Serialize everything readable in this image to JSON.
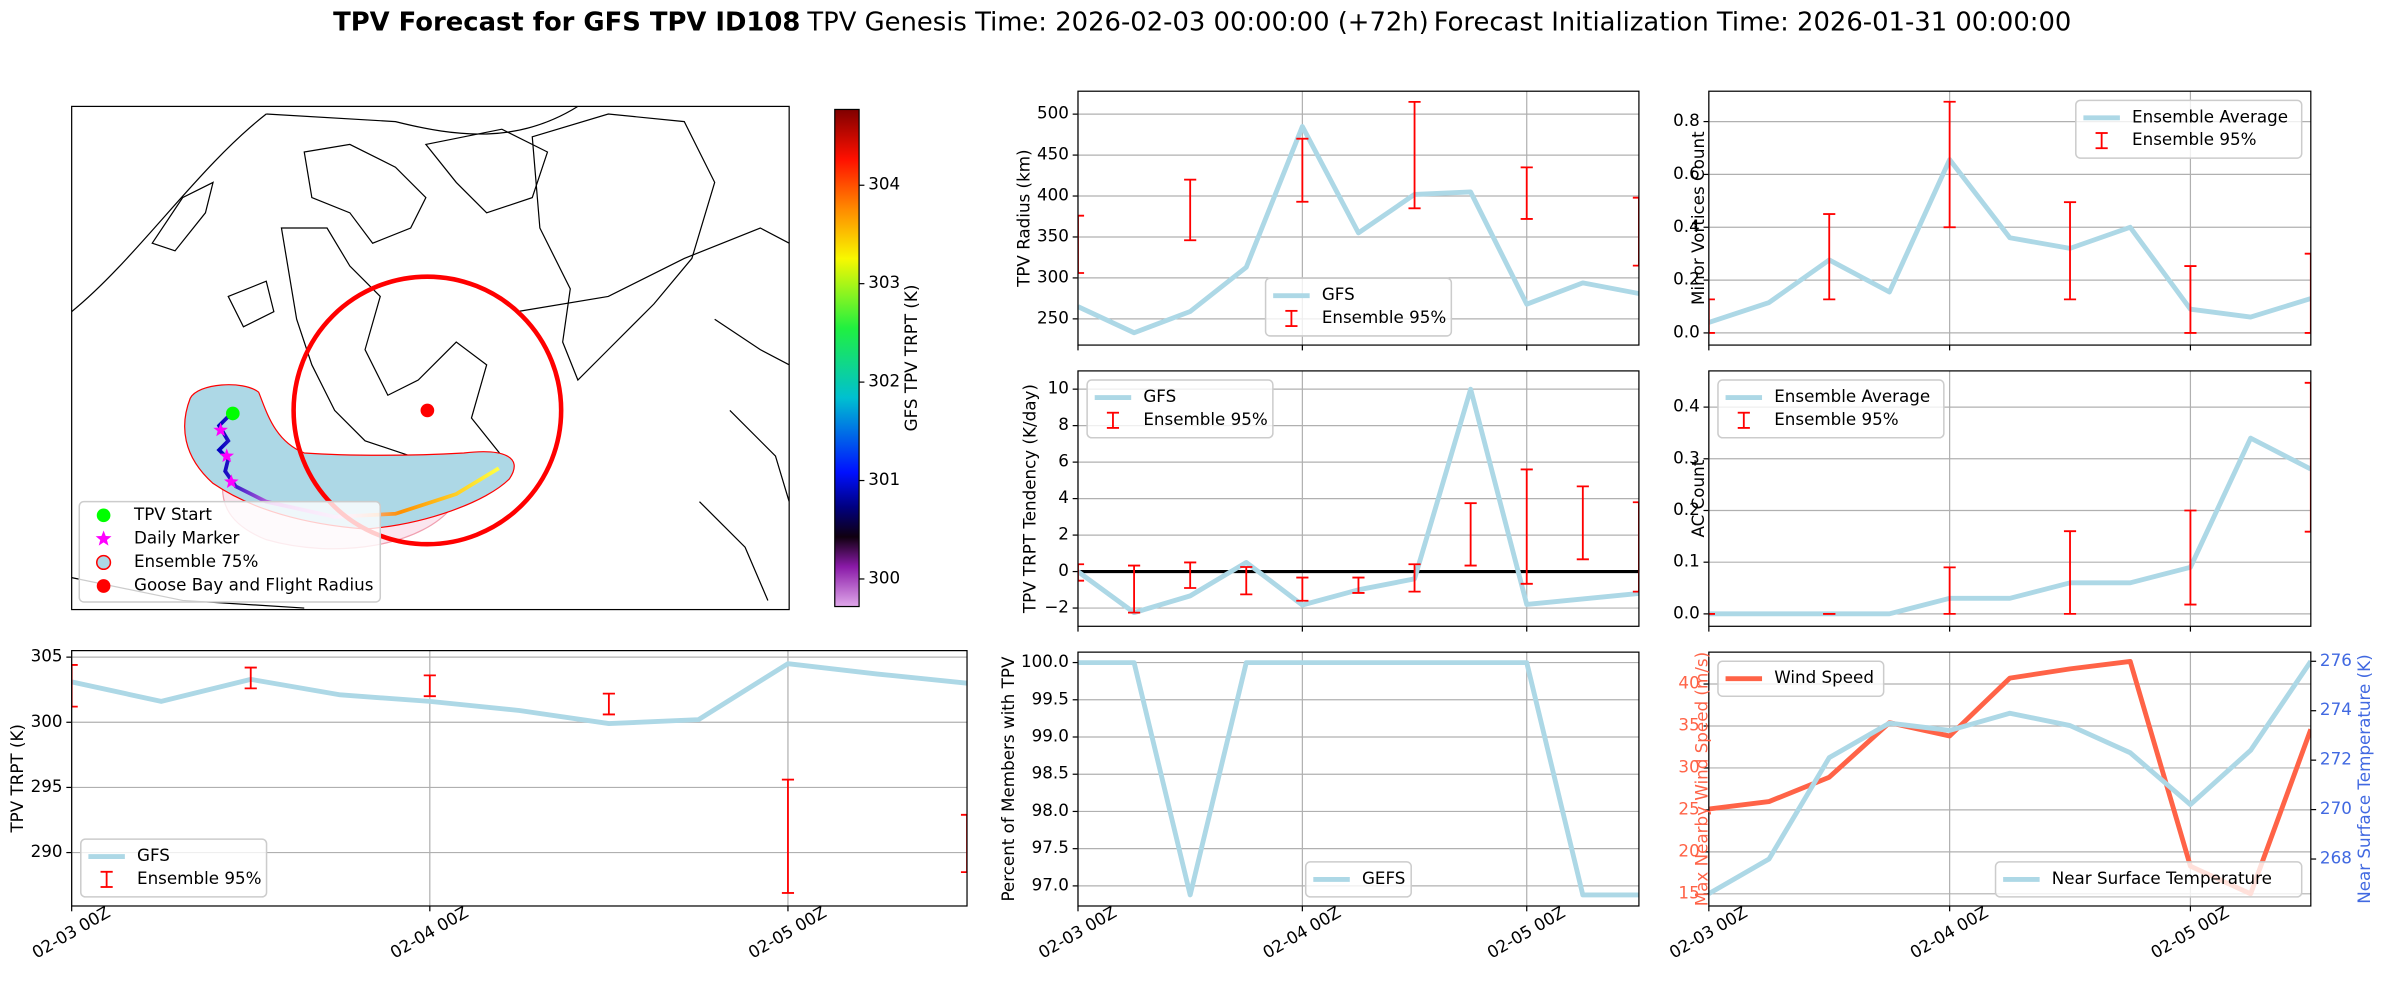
{
  "suptitle": [
    "TPV Forecast for GFS TPV ID108",
    "TPV Genesis Time: 2026-02-03 00:00:00 (+72h)",
    "Forecast Initialization Time: 2026-01-31 00:00:00"
  ],
  "chart_data": [
    {
      "type": "map",
      "legend_loc": "lower left",
      "legend": [
        {
          "label": "TPV Start",
          "color": "#00ff00",
          "marker": "circle"
        },
        {
          "label": "Daily Marker",
          "color": "#ff00ff",
          "marker": "star"
        },
        {
          "label": "Ensemble 75%",
          "color": "#add8e6",
          "edgecolor": "#ff0000",
          "marker": "circle"
        },
        {
          "label": "Goose Bay and Flight Radius",
          "color": "#ff0000",
          "marker": "circle"
        }
      ],
      "colorbar": {
        "label": "GFS TPV TRPT (K)",
        "lim": [
          299.72,
          304.77
        ],
        "ticks": [
          300,
          301,
          302,
          303,
          304
        ]
      }
    },
    {
      "type": "line",
      "ylabel": "TPV TRPT (K)",
      "x": [
        "02-03 00Z",
        "02-03 06Z",
        "02-03 12Z",
        "02-03 18Z",
        "02-04 00Z",
        "02-04 06Z",
        "02-04 12Z",
        "02-04 18Z",
        "02-05 00Z",
        "02-05 06Z",
        "02-05 12Z"
      ],
      "xlim": [
        "02-03 00Z",
        "02-05 12Z"
      ],
      "xticks": [
        "02-03 00Z",
        "02-04 00Z",
        "02-05 00Z"
      ],
      "xtick_labels": true,
      "ylim": [
        285.9,
        305.5
      ],
      "yticks": [
        290,
        295,
        300,
        305
      ],
      "grid": true,
      "legend": "lower left",
      "series": [
        {
          "name": "GFS",
          "color": "#add8e6",
          "values": [
            303.1,
            301.6,
            303.3,
            302.1,
            301.6,
            300.9,
            299.9,
            300.2,
            304.5,
            303.7,
            303.0
          ]
        },
        {
          "name": "Ensemble 95%",
          "type": "errorbar",
          "color": "#ff0000",
          "x": [
            "02-03 00Z",
            "02-03 12Z",
            "02-04 00Z",
            "02-04 12Z",
            "02-05 00Z",
            "02-05 12Z"
          ],
          "low": [
            301.2,
            302.6,
            302.0,
            300.6,
            286.9,
            288.5
          ],
          "high": [
            304.4,
            304.2,
            303.6,
            302.2,
            295.6,
            292.9
          ]
        }
      ]
    },
    {
      "type": "line",
      "ylabel": "TPV Radius (km)",
      "x": [
        "02-03 00Z",
        "02-03 06Z",
        "02-03 12Z",
        "02-03 18Z",
        "02-04 00Z",
        "02-04 06Z",
        "02-04 12Z",
        "02-04 18Z",
        "02-05 00Z",
        "02-05 06Z",
        "02-05 12Z"
      ],
      "xlim": [
        "02-03 00Z",
        "02-05 12Z"
      ],
      "xticks": [
        "02-03 00Z",
        "02-04 00Z",
        "02-05 00Z"
      ],
      "xtick_labels": false,
      "ylim": [
        218,
        528
      ],
      "yticks": [
        250,
        300,
        350,
        400,
        450,
        500
      ],
      "grid": true,
      "legend": "lower center",
      "series": [
        {
          "name": "GFS",
          "color": "#add8e6",
          "values": [
            265,
            233,
            259,
            313,
            485,
            355,
            402,
            405,
            268,
            294,
            281
          ]
        },
        {
          "name": "Ensemble 95%",
          "type": "errorbar",
          "color": "#ff0000",
          "x": [
            "02-03 00Z",
            "02-03 12Z",
            "02-04 00Z",
            "02-04 12Z",
            "02-05 00Z",
            "02-05 12Z"
          ],
          "low": [
            306,
            346,
            393,
            385,
            372,
            315
          ],
          "high": [
            376,
            420,
            470,
            515,
            435,
            398
          ]
        }
      ]
    },
    {
      "type": "line",
      "ylabel": "TPV TRPT Tendency (K/day)",
      "x": [
        "02-03 00Z",
        "02-03 06Z",
        "02-03 12Z",
        "02-03 18Z",
        "02-04 00Z",
        "02-04 06Z",
        "02-04 12Z",
        "02-04 18Z",
        "02-05 00Z",
        "02-05 06Z",
        "02-05 12Z"
      ],
      "xlim": [
        "02-03 00Z",
        "02-05 12Z"
      ],
      "xticks": [
        "02-03 00Z",
        "02-04 00Z",
        "02-05 00Z"
      ],
      "xtick_labels": false,
      "ylim": [
        -3,
        11
      ],
      "yticks": [
        {
          "value": -2,
          "label": "−2"
        },
        0,
        2,
        4,
        6,
        8,
        10
      ],
      "grid": true,
      "legend": "upper left",
      "hline": 0,
      "series": [
        {
          "name": "GFS",
          "color": "#add8e6",
          "values": [
            0,
            -2.25,
            -1.33,
            0.5,
            -1.83,
            -1.0,
            -0.4,
            10,
            -1.8,
            -1.5,
            -1.2
          ]
        },
        {
          "name": "Ensemble 95%",
          "type": "errorbar",
          "color": "#ff0000",
          "x": [
            "02-03 00Z",
            "02-03 06Z",
            "02-03 12Z",
            "02-03 18Z",
            "02-04 00Z",
            "02-04 06Z",
            "02-04 12Z",
            "02-04 18Z",
            "02-05 00Z",
            "02-05 06Z",
            "02-05 12Z"
          ],
          "low": [
            -0.5,
            -2.25,
            -0.9,
            -1.25,
            -1.6,
            -1.17,
            -1.1,
            0.33,
            -0.67,
            0.67,
            -1.1
          ],
          "high": [
            0.4,
            0.33,
            0.5,
            0.25,
            -0.33,
            -0.33,
            0.4,
            3.75,
            5.6,
            4.67,
            3.8
          ]
        }
      ]
    },
    {
      "type": "line",
      "ylabel": "Percent of Members with TPV",
      "x": [
        "02-03 00Z",
        "02-03 06Z",
        "02-03 12Z",
        "02-03 18Z",
        "02-04 00Z",
        "02-04 06Z",
        "02-04 12Z",
        "02-04 18Z",
        "02-05 00Z",
        "02-05 06Z",
        "02-05 12Z"
      ],
      "xlim": [
        "02-03 00Z",
        "02-05 12Z"
      ],
      "xticks": [
        "02-03 00Z",
        "02-04 00Z",
        "02-05 00Z"
      ],
      "xtick_labels": true,
      "ylim": [
        96.73,
        100.14
      ],
      "yticks": [
        {
          "value": 97,
          "label": "97.0"
        },
        97.5,
        {
          "value": 98,
          "label": "98.0"
        },
        98.5,
        {
          "value": 99,
          "label": "99.0"
        },
        99.5,
        {
          "value": 100,
          "label": "100.0"
        }
      ],
      "grid": true,
      "legend": "lower center",
      "series": [
        {
          "name": "GEFS",
          "color": "#add8e6",
          "values": [
            100,
            100,
            96.88,
            100,
            100,
            100,
            100,
            100,
            100,
            96.88,
            96.88
          ]
        }
      ]
    },
    {
      "type": "line",
      "ylabel": "Minor Vortices Count",
      "x": [
        "02-03 00Z",
        "02-03 06Z",
        "02-03 12Z",
        "02-03 18Z",
        "02-04 00Z",
        "02-04 06Z",
        "02-04 12Z",
        "02-04 18Z",
        "02-05 00Z",
        "02-05 06Z",
        "02-05 12Z"
      ],
      "xlim": [
        "02-03 00Z",
        "02-05 12Z"
      ],
      "xticks": [
        "02-03 00Z",
        "02-04 00Z",
        "02-05 00Z"
      ],
      "xtick_labels": false,
      "ylim": [
        -0.046,
        0.915
      ],
      "yticks": [
        {
          "value": 0,
          "label": "0.0"
        },
        0.2,
        0.4,
        0.6,
        0.8
      ],
      "grid": true,
      "legend": "upper right",
      "series": [
        {
          "name": "Ensemble Average",
          "color": "#add8e6",
          "values": [
            0.04,
            0.115,
            0.276,
            0.155,
            0.656,
            0.36,
            0.32,
            0.4,
            0.09,
            0.06,
            0.13
          ]
        },
        {
          "name": "Ensemble 95%",
          "type": "errorbar",
          "color": "#ff0000",
          "x": [
            "02-03 00Z",
            "02-03 12Z",
            "02-04 00Z",
            "02-04 12Z",
            "02-05 00Z",
            "02-05 12Z"
          ],
          "low": [
            0,
            0.127,
            0.4,
            0.127,
            0,
            0
          ],
          "high": [
            0.127,
            0.45,
            0.875,
            0.495,
            0.253,
            0.3
          ]
        }
      ]
    },
    {
      "type": "line",
      "ylabel": "AC Count",
      "x": [
        "02-03 00Z",
        "02-03 06Z",
        "02-03 12Z",
        "02-03 18Z",
        "02-04 00Z",
        "02-04 06Z",
        "02-04 12Z",
        "02-04 18Z",
        "02-05 00Z",
        "02-05 06Z",
        "02-05 12Z"
      ],
      "xlim": [
        "02-03 00Z",
        "02-05 12Z"
      ],
      "xticks": [
        "02-03 00Z",
        "02-04 00Z",
        "02-05 00Z"
      ],
      "xtick_labels": false,
      "ylim": [
        -0.024,
        0.47
      ],
      "yticks": [
        {
          "value": 0,
          "label": "0.0"
        },
        0.1,
        0.2,
        0.3,
        0.4
      ],
      "grid": true,
      "legend": "upper left",
      "series": [
        {
          "name": "Ensemble Average",
          "color": "#add8e6",
          "values": [
            0,
            0,
            0,
            0,
            0.03,
            0.03,
            0.06,
            0.06,
            0.09,
            0.34,
            0.28
          ]
        },
        {
          "name": "Ensemble 95%",
          "type": "errorbar",
          "color": "#ff0000",
          "x": [
            "02-03 00Z",
            "02-03 12Z",
            "02-04 00Z",
            "02-04 12Z",
            "02-05 00Z",
            "02-05 12Z"
          ],
          "low": [
            0,
            0,
            0,
            0,
            0.018,
            0.159
          ],
          "high": [
            0,
            0,
            0.09,
            0.16,
            0.2,
            0.447
          ]
        }
      ]
    },
    {
      "type": "line",
      "ylabel": "Max Nearby Wind Speed (m/s)",
      "ylabel_color": "#ff6347",
      "y2label": "Near Surface Temperature (K)",
      "y2label_color": "#4169e1",
      "x": [
        "02-03 00Z",
        "02-03 06Z",
        "02-03 12Z",
        "02-03 18Z",
        "02-04 00Z",
        "02-04 06Z",
        "02-04 12Z",
        "02-04 18Z",
        "02-05 00Z",
        "02-05 06Z",
        "02-05 12Z"
      ],
      "xlim": [
        "02-03 00Z",
        "02-05 12Z"
      ],
      "xticks": [
        "02-03 00Z",
        "02-04 00Z",
        "02-05 00Z"
      ],
      "xtick_labels": true,
      "ylim": [
        13.55,
        43.8
      ],
      "yticks": [
        15,
        20,
        25,
        30,
        35,
        40
      ],
      "y2lim": [
        266.1,
        276.37
      ],
      "y2ticks": [
        268,
        270,
        272,
        274,
        276
      ],
      "grid": true,
      "series": [
        {
          "name": "Wind Speed",
          "color": "#ff6347",
          "legend": "upper left",
          "values": [
            25.1,
            26.0,
            28.9,
            35.4,
            33.8,
            40.7,
            41.8,
            42.7,
            18.3,
            15.0,
            34.6
          ]
        },
        {
          "name": "Near Surface Temperature",
          "color": "#add8e6",
          "axis": "y2",
          "legend": "lower right",
          "values": [
            266.6,
            268.0,
            272.1,
            273.5,
            273.2,
            273.9,
            273.4,
            272.3,
            270.2,
            272.4,
            276.0
          ]
        }
      ]
    }
  ]
}
